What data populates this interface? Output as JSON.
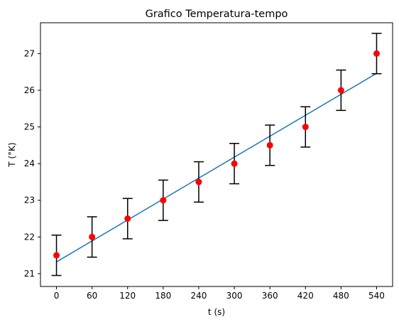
{
  "chart_data": {
    "type": "scatter",
    "title": "Grafico Temperatura-tempo",
    "xlabel": "t (s)",
    "ylabel": "T (°K)",
    "xlim": [
      -27,
      567
    ],
    "ylim": [
      20.65,
      27.84
    ],
    "xticks": [
      0,
      60,
      120,
      180,
      240,
      300,
      360,
      420,
      480,
      540
    ],
    "yticks": [
      21,
      22,
      23,
      24,
      25,
      26,
      27
    ],
    "grid": false,
    "legend": "none",
    "series": [
      {
        "kind": "errorbar",
        "x": [
          0,
          60,
          120,
          180,
          240,
          300,
          360,
          420,
          480,
          540
        ],
        "y": [
          21.5,
          22.0,
          22.5,
          23.0,
          23.5,
          24.0,
          24.5,
          25.0,
          26.0,
          27.0
        ],
        "yerr": 0.55,
        "color": "#ff0000",
        "errorbar_color": "#000000"
      },
      {
        "kind": "line",
        "x": [
          0,
          540
        ],
        "y": [
          21.32,
          26.46
        ],
        "color": "#1f77b4"
      }
    ]
  }
}
